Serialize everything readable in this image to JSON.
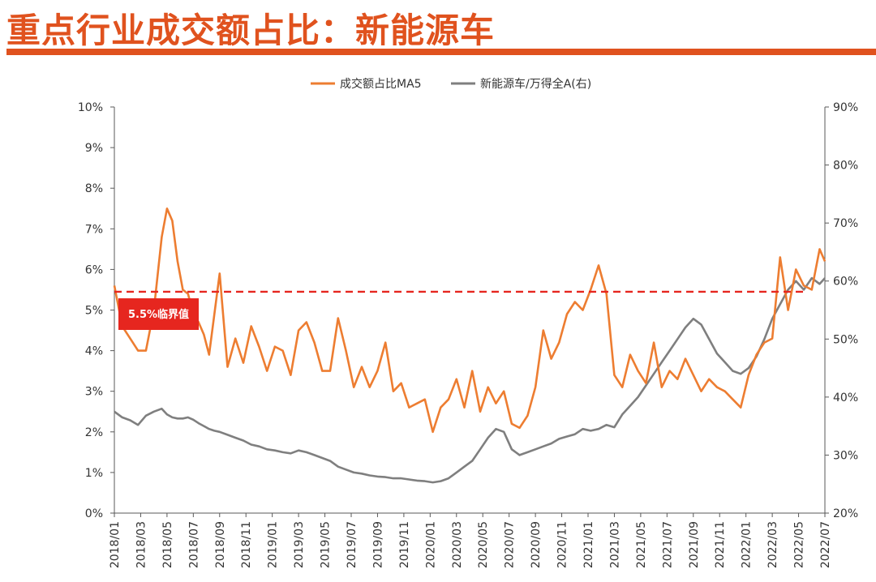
{
  "header": {
    "title": "重点行业成交额占比：新能源车"
  },
  "colors": {
    "accent": "#e0521e",
    "series_ma5": "#ed7d31",
    "series_ratio": "#7f7f7f",
    "threshold": "#e6261f"
  },
  "chart_data": {
    "type": "line",
    "legend_position": "top-center",
    "legend": [
      "成交额占比MA5",
      "新能源车/万得全A(右)"
    ],
    "y_left": {
      "range": [
        0,
        10
      ],
      "ticks": [
        "0%",
        "1%",
        "2%",
        "3%",
        "4%",
        "5%",
        "6%",
        "7%",
        "8%",
        "9%",
        "10%"
      ]
    },
    "y_right": {
      "range": [
        20,
        90
      ],
      "ticks": [
        "20%",
        "30%",
        "40%",
        "50%",
        "60%",
        "70%",
        "80%",
        "90%"
      ]
    },
    "x_ticks": [
      "2018/01",
      "2018/03",
      "2018/05",
      "2018/07",
      "2018/09",
      "2018/11",
      "2019/01",
      "2019/03",
      "2019/05",
      "2019/07",
      "2019/09",
      "2019/11",
      "2020/01",
      "2020/03",
      "2020/05",
      "2020/07",
      "2020/09",
      "2020/11",
      "2021/01",
      "2021/03",
      "2021/05",
      "2021/07",
      "2021/09",
      "2021/11",
      "2022/01",
      "2022/03",
      "2022/05",
      "2022/07"
    ],
    "threshold": {
      "value": 5.45,
      "label": "5.5%临界值"
    },
    "series": [
      {
        "name": "成交额占比MA5",
        "axis": "left",
        "x": [
          0,
          0.3,
          0.6,
          0.9,
          1.2,
          1.5,
          1.8,
          2.0,
          2.2,
          2.4,
          2.6,
          2.8,
          3.0,
          3.2,
          3.4,
          3.6,
          3.8,
          4.0,
          4.3,
          4.6,
          4.9,
          5.2,
          5.5,
          5.8,
          6.1,
          6.4,
          6.7,
          7.0,
          7.3,
          7.6,
          7.9,
          8.2,
          8.5,
          8.8,
          9.1,
          9.4,
          9.7,
          10.0,
          10.3,
          10.6,
          10.9,
          11.2,
          11.5,
          11.8,
          12.1,
          12.4,
          12.7,
          13.0,
          13.3,
          13.6,
          13.9,
          14.2,
          14.5,
          14.8,
          15.1,
          15.4,
          15.7,
          16.0,
          16.3,
          16.6,
          16.9,
          17.2,
          17.5,
          17.8,
          18.1,
          18.4,
          18.7,
          19.0,
          19.3,
          19.6,
          19.9,
          20.2,
          20.5,
          20.8,
          21.1,
          21.4,
          21.7,
          22.0,
          22.3,
          22.6,
          22.9,
          23.2,
          23.5,
          23.8,
          24.1,
          24.4,
          24.7,
          25.0,
          25.3,
          25.6,
          25.9,
          26.2,
          26.5,
          26.8,
          27.0
        ],
        "y": [
          5.6,
          4.6,
          4.3,
          4.0,
          4.0,
          5.0,
          6.8,
          7.5,
          7.2,
          6.2,
          5.5,
          5.4,
          4.9,
          4.7,
          4.4,
          3.9,
          4.9,
          5.9,
          3.6,
          4.3,
          3.7,
          4.6,
          4.1,
          3.5,
          4.1,
          4.0,
          3.4,
          4.5,
          4.7,
          4.2,
          3.5,
          3.5,
          4.8,
          4.0,
          3.1,
          3.6,
          3.1,
          3.5,
          4.2,
          3.0,
          3.2,
          2.6,
          2.7,
          2.8,
          2.0,
          2.6,
          2.8,
          3.3,
          2.6,
          3.5,
          2.5,
          3.1,
          2.7,
          3.0,
          2.2,
          2.1,
          2.4,
          3.1,
          4.5,
          3.8,
          4.2,
          4.9,
          5.2,
          5.0,
          5.5,
          6.1,
          5.4,
          3.4,
          3.1,
          3.9,
          3.5,
          3.2,
          4.2,
          3.1,
          3.5,
          3.3,
          3.8,
          3.4,
          3.0,
          3.3,
          3.1,
          3.0,
          2.8,
          2.6,
          3.4,
          3.9,
          4.2,
          4.3,
          6.3,
          5.0,
          6.0,
          5.6,
          5.5,
          6.5,
          6.2
        ]
      },
      {
        "name": "新能源车/万得全A(右)",
        "axis": "right",
        "x": [
          0,
          0.3,
          0.6,
          0.9,
          1.2,
          1.5,
          1.8,
          2.0,
          2.2,
          2.4,
          2.6,
          2.8,
          3.0,
          3.2,
          3.4,
          3.6,
          3.8,
          4.0,
          4.3,
          4.6,
          4.9,
          5.2,
          5.5,
          5.8,
          6.1,
          6.4,
          6.7,
          7.0,
          7.3,
          7.6,
          7.9,
          8.2,
          8.5,
          8.8,
          9.1,
          9.4,
          9.7,
          10.0,
          10.3,
          10.6,
          10.9,
          11.2,
          11.5,
          11.8,
          12.1,
          12.4,
          12.7,
          13.0,
          13.3,
          13.6,
          13.9,
          14.2,
          14.5,
          14.8,
          15.1,
          15.4,
          15.7,
          16.0,
          16.3,
          16.6,
          16.9,
          17.2,
          17.5,
          17.8,
          18.1,
          18.4,
          18.7,
          19.0,
          19.3,
          19.6,
          19.9,
          20.2,
          20.5,
          20.8,
          21.1,
          21.4,
          21.7,
          22.0,
          22.3,
          22.6,
          22.9,
          23.2,
          23.5,
          23.8,
          24.1,
          24.4,
          24.7,
          25.0,
          25.3,
          25.6,
          25.9,
          26.2,
          26.5,
          26.8,
          27.0
        ],
        "y": [
          37.5,
          36.5,
          36.0,
          35.2,
          36.8,
          37.5,
          38.0,
          37.0,
          36.5,
          36.3,
          36.3,
          36.5,
          36.1,
          35.5,
          35.0,
          34.5,
          34.2,
          34.0,
          33.5,
          33.0,
          32.5,
          31.8,
          31.5,
          31.0,
          30.8,
          30.5,
          30.3,
          30.8,
          30.5,
          30.0,
          29.5,
          29.0,
          28.0,
          27.5,
          27.0,
          26.8,
          26.5,
          26.3,
          26.2,
          26.0,
          26.0,
          25.8,
          25.6,
          25.5,
          25.3,
          25.5,
          26.0,
          27.0,
          28.0,
          29.0,
          31.0,
          33.0,
          34.5,
          34.0,
          31.0,
          30.0,
          30.5,
          31.0,
          31.5,
          32.0,
          32.8,
          33.2,
          33.6,
          34.5,
          34.2,
          34.5,
          35.2,
          34.8,
          37.0,
          38.5,
          40.0,
          42.0,
          44.0,
          46.0,
          48.0,
          50.0,
          52.0,
          53.5,
          52.5,
          50.0,
          47.5,
          46.0,
          44.5,
          44.0,
          45.0,
          47.0,
          50.0,
          53.5,
          56.0,
          58.5,
          60.0,
          58.5,
          60.5,
          59.5,
          60.5
        ]
      }
    ]
  }
}
